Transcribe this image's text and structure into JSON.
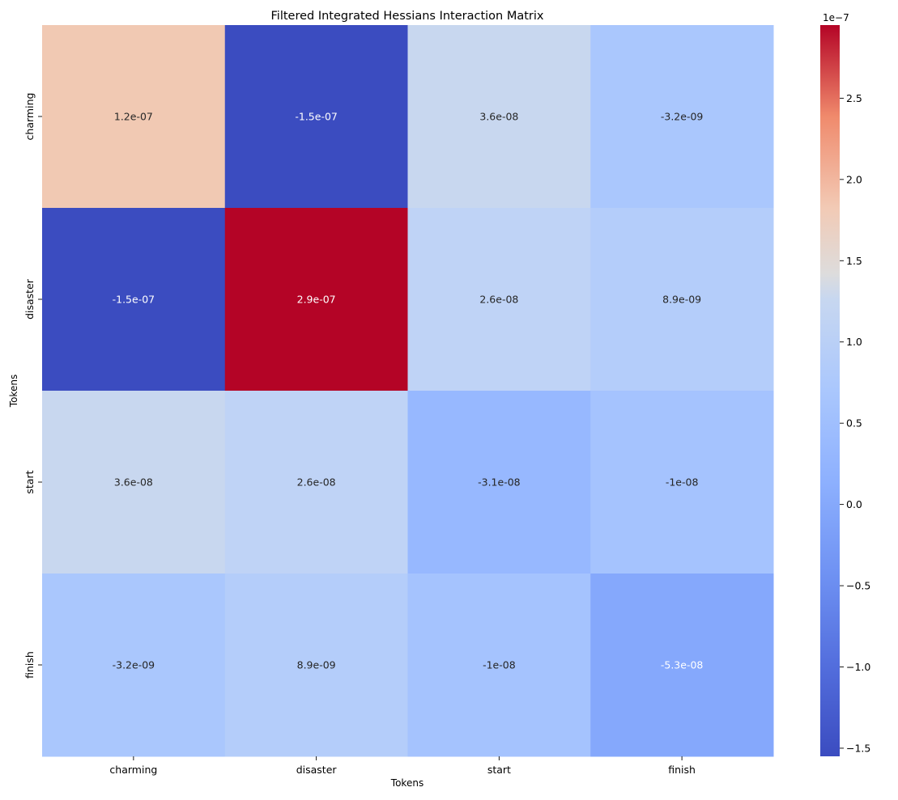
{
  "chart_data": {
    "type": "heatmap",
    "title": "Filtered Integrated Hessians Interaction Matrix",
    "xlabel": "Tokens",
    "ylabel": "Tokens",
    "x_categories": [
      "charming",
      "disaster",
      "start",
      "finish"
    ],
    "y_categories": [
      "charming",
      "disaster",
      "start",
      "finish"
    ],
    "values": [
      [
        1.2e-07,
        -1.5e-07,
        3.6e-08,
        -3.2e-09
      ],
      [
        -1.5e-07,
        2.9e-07,
        2.6e-08,
        8.9e-09
      ],
      [
        3.6e-08,
        2.6e-08,
        -3.1e-08,
        -1e-08
      ],
      [
        -3.2e-09,
        8.9e-09,
        -1e-08,
        -5.3e-08
      ]
    ],
    "annotations": [
      [
        "1.2e-07",
        "-1.5e-07",
        "3.6e-08",
        "-3.2e-09"
      ],
      [
        "-1.5e-07",
        "2.9e-07",
        "2.6e-08",
        "8.9e-09"
      ],
      [
        "3.6e-08",
        "2.6e-08",
        "-3.1e-08",
        "-1e-08"
      ],
      [
        "-3.2e-09",
        "8.9e-09",
        "-1e-08",
        "-5.3e-08"
      ]
    ],
    "cell_colors": [
      [
        "#f1c9b3",
        "#3b4cc0",
        "#c8d7ef",
        "#aac7fd"
      ],
      [
        "#3b4cc0",
        "#b40426",
        "#bfd3f6",
        "#b4cdfa"
      ],
      [
        "#c8d7ef",
        "#bfd3f6",
        "#97b8ff",
        "#a5c3fe"
      ],
      [
        "#aac7fd",
        "#b4cdfa",
        "#a5c3fe",
        "#85a8fc"
      ]
    ],
    "annotation_colors": [
      [
        "#262626",
        "#ffffff",
        "#262626",
        "#262626"
      ],
      [
        "#ffffff",
        "#ffffff",
        "#262626",
        "#262626"
      ],
      [
        "#262626",
        "#262626",
        "#262626",
        "#262626"
      ],
      [
        "#262626",
        "#262626",
        "#262626",
        "#ffffff"
      ]
    ],
    "colormap": "coolwarm",
    "colorbar": {
      "vmin": -1.55e-07,
      "vmax": 2.95e-07,
      "multiplier_label": "1e−7",
      "ticks": [
        -1.5,
        -1.0,
        -0.5,
        0.0,
        0.5,
        1.0,
        1.5,
        2.0,
        2.5
      ],
      "tick_labels": [
        "−1.5",
        "−1.0",
        "−0.5",
        "0.0",
        "0.5",
        "1.0",
        "1.5",
        "2.0",
        "2.5"
      ],
      "tick_scale": 1e-07
    }
  }
}
